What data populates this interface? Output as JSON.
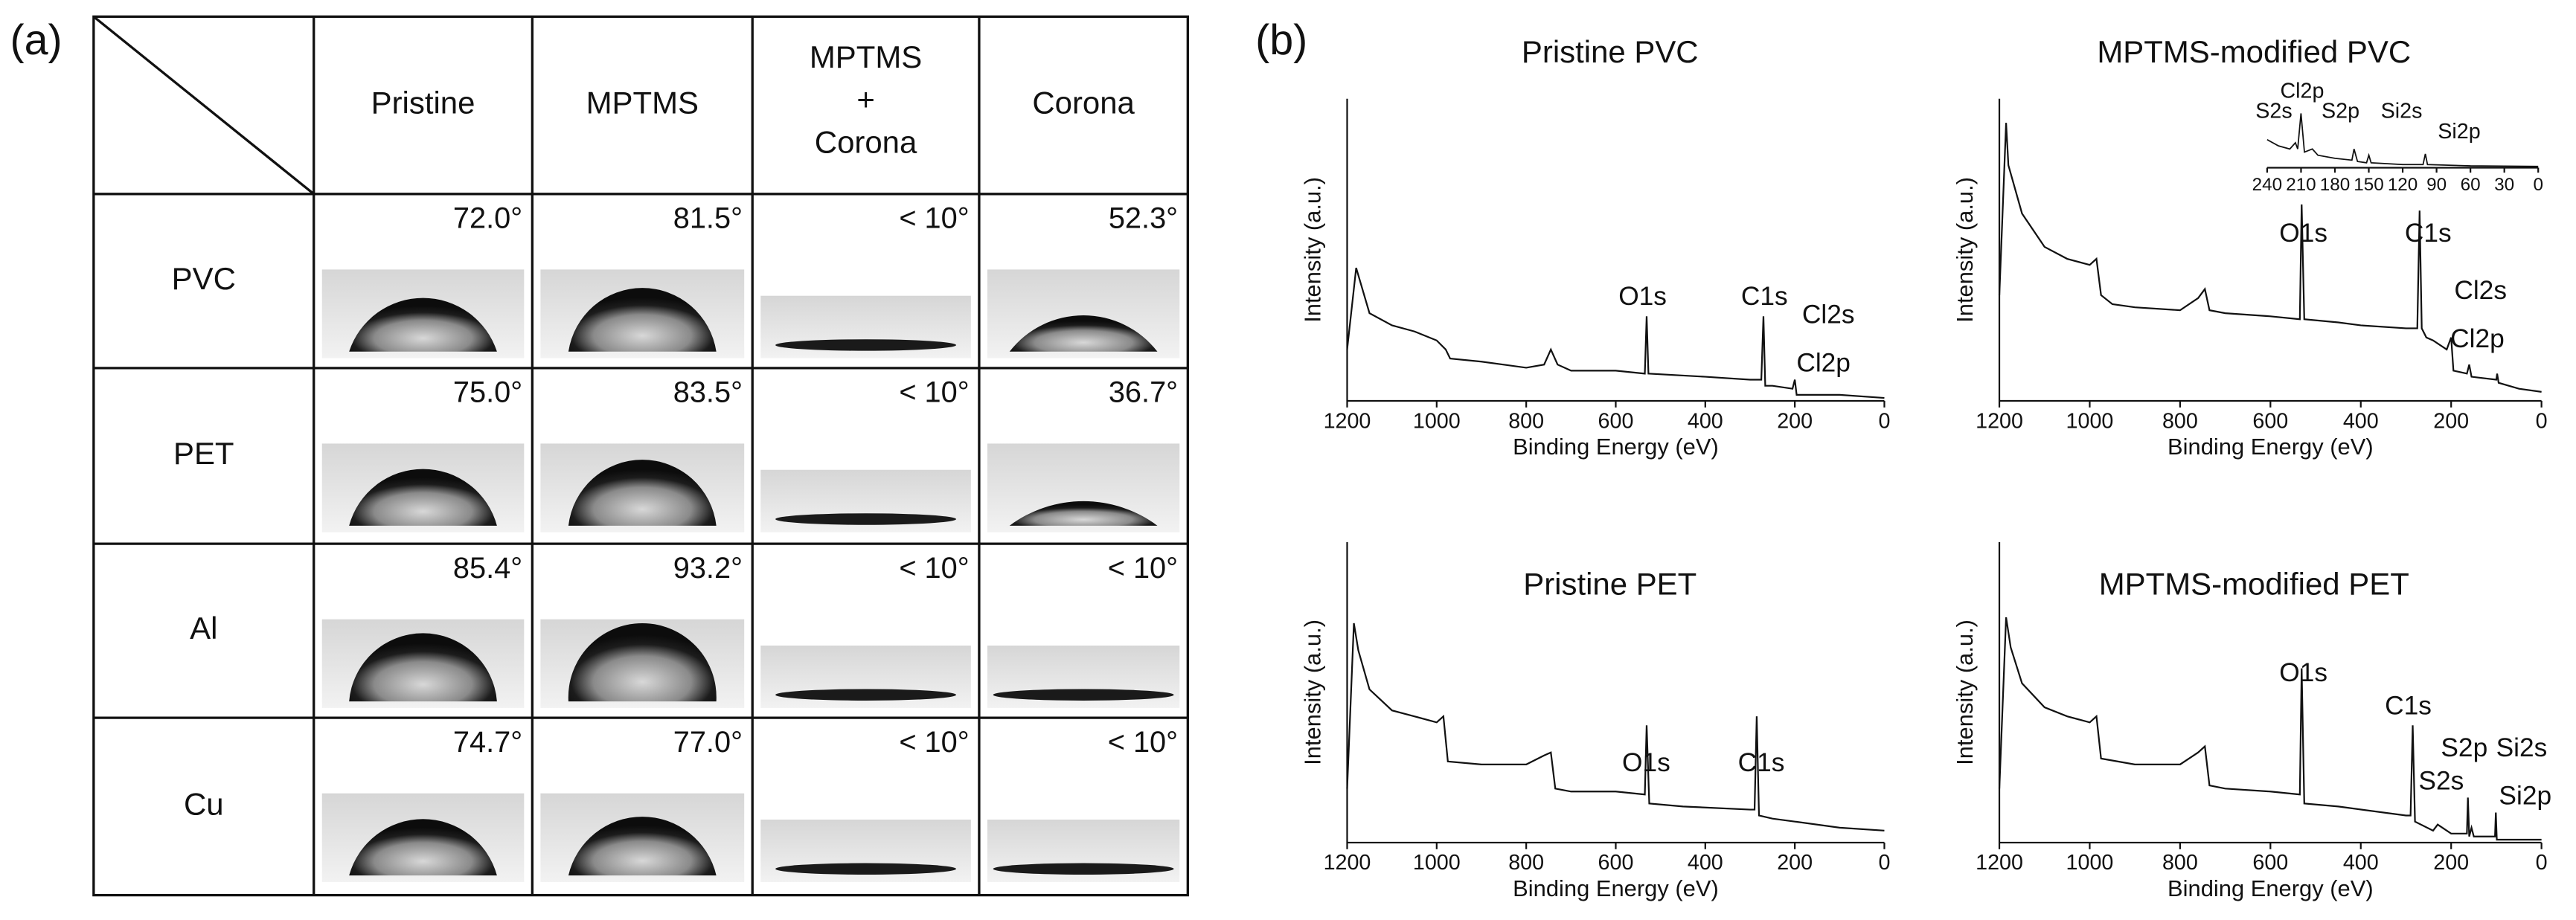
{
  "panel_labels": [
    "(a)",
    "(b)"
  ],
  "table": {
    "header": [
      "Pristine",
      "MPTMS",
      [
        "MPTMS",
        "+",
        "Corona"
      ],
      "Corona"
    ],
    "rows": [
      {
        "label": "PVC",
        "cells": [
          "72.0°",
          "81.5°",
          "< 10°",
          "52.3°"
        ]
      },
      {
        "label": "PET",
        "cells": [
          "75.0°",
          "83.5°",
          "< 10°",
          "36.7°"
        ]
      },
      {
        "label": "Al",
        "cells": [
          "85.4°",
          "93.2°",
          "< 10°",
          "< 10°"
        ]
      },
      {
        "label": "Cu",
        "cells": [
          "74.7°",
          "77.0°",
          "< 10°",
          "< 10°"
        ]
      }
    ]
  },
  "chart_data": [
    {
      "type": "line",
      "title": "Pristine PVC",
      "x_label": "Binding Energy (eV)",
      "y_label": "Intensity (a.u.)",
      "xlim": [
        1200,
        0
      ],
      "xticks": [
        1200,
        1000,
        800,
        600,
        400,
        200,
        0
      ],
      "ylim": [
        0,
        100
      ],
      "series": [
        {
          "color": "#111111",
          "x": [
            1200,
            1180,
            1150,
            1100,
            1050,
            1000,
            980,
            970,
            900,
            800,
            760,
            745,
            730,
            700,
            600,
            535,
            531,
            527,
            400,
            300,
            275,
            270,
            266,
            250,
            205,
            200,
            196,
            150,
            100,
            0
          ],
          "values": [
            17,
            44,
            29,
            25,
            23,
            20,
            17,
            14,
            13,
            11,
            12,
            17,
            12,
            10,
            10,
            9,
            28,
            9,
            8,
            7,
            7,
            28,
            5,
            5,
            4,
            7,
            2,
            2,
            2,
            1
          ]
        }
      ],
      "annotations": [
        {
          "text": "O1s",
          "x": 540,
          "y": 34
        },
        {
          "text": "C1s",
          "x": 268,
          "y": 34
        },
        {
          "text": "Cl2s",
          "x": 125,
          "y": 28
        },
        {
          "text": "Cl2p",
          "x": 136,
          "y": 12
        }
      ]
    },
    {
      "type": "line",
      "title": "MPTMS-modified PVC",
      "x_label": "Binding Energy (eV)",
      "y_label": "Intensity (a.u.)",
      "xlim": [
        1200,
        0
      ],
      "xticks": [
        1200,
        1000,
        800,
        600,
        400,
        200,
        0
      ],
      "ylim": [
        0,
        100
      ],
      "series": [
        {
          "color": "#111111",
          "x": [
            1200,
            1185,
            1180,
            1150,
            1100,
            1050,
            1000,
            985,
            975,
            950,
            900,
            800,
            760,
            745,
            735,
            700,
            600,
            535,
            531,
            525,
            450,
            400,
            300,
            275,
            270,
            265,
            255,
            240,
            210,
            200,
            195,
            165,
            160,
            155,
            100,
            98,
            95,
            50,
            0
          ],
          "values": [
            35,
            92,
            78,
            62,
            51,
            47,
            45,
            47,
            35,
            32,
            31,
            30,
            34,
            37,
            30,
            29,
            28,
            27,
            65,
            27,
            26,
            25,
            24,
            24,
            63,
            24,
            21,
            20,
            17,
            21,
            10,
            9,
            12,
            8,
            7,
            9,
            6,
            4,
            3
          ]
        }
      ],
      "annotations": [
        {
          "text": "O1s",
          "x": 527,
          "y": 55
        },
        {
          "text": "C1s",
          "x": 251,
          "y": 55
        },
        {
          "text": "Cl2s",
          "x": 135,
          "y": 36
        },
        {
          "text": "Cl2p",
          "x": 142,
          "y": 20
        }
      ],
      "inset": {
        "xlim": [
          240,
          0
        ],
        "xticks": [
          240,
          210,
          180,
          150,
          120,
          90,
          60,
          30,
          0
        ],
        "ylim": [
          0,
          100
        ],
        "x": [
          240,
          230,
          220,
          215,
          213,
          210,
          207,
          200,
          195,
          180,
          165,
          163,
          160,
          152,
          150,
          148,
          120,
          102,
          100,
          98,
          60,
          0
        ],
        "values": [
          45,
          35,
          30,
          40,
          30,
          87,
          25,
          30,
          20,
          15,
          12,
          30,
          10,
          8,
          20,
          8,
          5,
          5,
          22,
          5,
          3,
          2
        ],
        "annotations": [
          {
            "text": "S2s",
            "x": 234,
            "y": 68
          },
          {
            "text": "Cl2p",
            "x": 209,
            "y": 100
          },
          {
            "text": "S2p",
            "x": 175,
            "y": 68
          },
          {
            "text": "Si2s",
            "x": 121,
            "y": 68
          },
          {
            "text": "Si2p",
            "x": 70,
            "y": 35
          }
        ]
      }
    },
    {
      "type": "line",
      "title": "Pristine PET",
      "x_label": "Binding Energy (eV)",
      "y_label": "Intensity (a.u.)",
      "xlim": [
        1200,
        0
      ],
      "xticks": [
        1200,
        1000,
        800,
        600,
        400,
        200,
        0
      ],
      "ylim": [
        0,
        100
      ],
      "series": [
        {
          "color": "#111111",
          "x": [
            1200,
            1185,
            1175,
            1150,
            1100,
            1050,
            1000,
            985,
            975,
            900,
            800,
            760,
            745,
            735,
            700,
            600,
            535,
            531,
            525,
            450,
            300,
            290,
            285,
            280,
            250,
            200,
            100,
            0
          ],
          "values": [
            18,
            73,
            64,
            51,
            44,
            42,
            40,
            42,
            27,
            26,
            26,
            29,
            30,
            18,
            17,
            17,
            16,
            39,
            13,
            12,
            11,
            11,
            42,
            9,
            8,
            7,
            5,
            4
          ]
        }
      ],
      "annotations": [
        {
          "text": "O1s",
          "x": 532,
          "y": 26
        },
        {
          "text": "C1s",
          "x": 275,
          "y": 26
        }
      ]
    },
    {
      "type": "line",
      "title": "MPTMS-modified PET",
      "x_label": "Binding Energy (eV)",
      "y_label": "Intensity (a.u.)",
      "xlim": [
        1200,
        0
      ],
      "xticks": [
        1200,
        1000,
        800,
        600,
        400,
        200,
        0
      ],
      "ylim": [
        0,
        100
      ],
      "series": [
        {
          "color": "#111111",
          "x": [
            1200,
            1185,
            1175,
            1150,
            1100,
            1050,
            1000,
            985,
            975,
            900,
            800,
            760,
            745,
            735,
            700,
            600,
            535,
            531,
            525,
            450,
            300,
            290,
            285,
            280,
            240,
            230,
            200,
            165,
            163,
            160,
            155,
            150,
            103,
            101,
            99,
            0
          ],
          "values": [
            18,
            75,
            65,
            53,
            45,
            42,
            40,
            42,
            28,
            26,
            26,
            30,
            32,
            19,
            18,
            17,
            16,
            58,
            13,
            12,
            9,
            9,
            39,
            7,
            4,
            6,
            3,
            3,
            15,
            2,
            5,
            2,
            2,
            10,
            1,
            1
          ]
        }
      ],
      "annotations": [
        {
          "text": "O1s",
          "x": 527,
          "y": 56
        },
        {
          "text": "C1s",
          "x": 295,
          "y": 45
        },
        {
          "text": "S2s",
          "x": 222,
          "y": 20
        },
        {
          "text": "S2p",
          "x": 171,
          "y": 31
        },
        {
          "text": "Si2s",
          "x": 44,
          "y": 31
        },
        {
          "text": "Si2p",
          "x": 36,
          "y": 15
        }
      ]
    }
  ]
}
